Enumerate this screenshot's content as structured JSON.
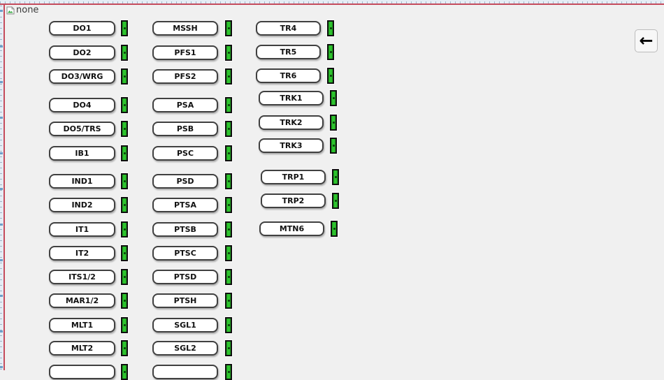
{
  "window": {
    "alt_text": "none"
  },
  "icons": {
    "back_arrow": "←",
    "broken_image": "broken-image"
  },
  "colors": {
    "led_green": "#2fc42f",
    "ruler_accent_red": "#c54b5c"
  },
  "columns": [
    {
      "id": "column-1",
      "groups": [
        [
          "DO1",
          "DO2",
          "DO3/WRG"
        ],
        [
          "DO4",
          "DO5/TRS",
          "IB1"
        ],
        [
          "IND1",
          "IND2",
          "IT1",
          "IT2",
          "ITS1/2",
          "MAR1/2",
          "MLT1",
          "MLT2"
        ]
      ],
      "partial_bottom_button": true
    },
    {
      "id": "column-2",
      "groups": [
        [
          "MSSH",
          "PFS1",
          "PFS2"
        ],
        [
          "PSA",
          "PSB",
          "PSC"
        ],
        [
          "PSD",
          "PTSA",
          "PTSB",
          "PTSC",
          "PTSD",
          "PTSH",
          "SGL1",
          "SGL2"
        ]
      ],
      "partial_bottom_button": true
    },
    {
      "id": "column-3",
      "groups": [
        [
          "TR4",
          "TR5",
          "TR6"
        ],
        [
          "TRK1",
          "TRK2",
          "TRK3"
        ],
        [
          "TRP1",
          "TRP2"
        ],
        [
          "MTN6"
        ]
      ],
      "partial_bottom_button": false
    }
  ]
}
